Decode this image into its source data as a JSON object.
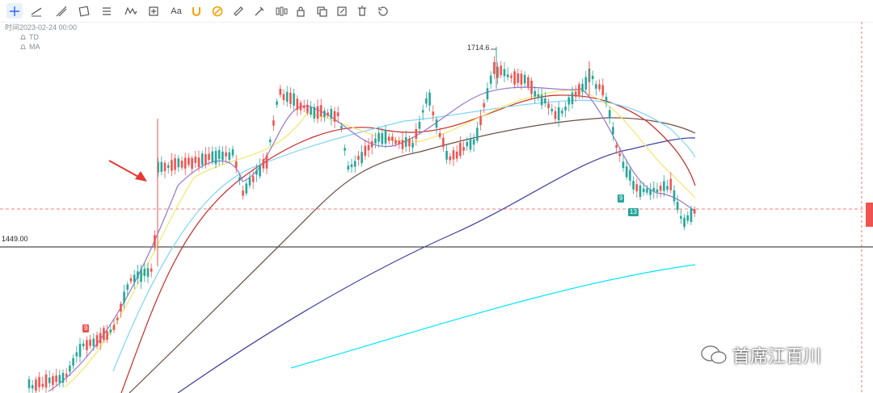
{
  "toolbar": {
    "tools": [
      {
        "icon": "crosshair-icon"
      },
      {
        "icon": "trend-line-icon"
      },
      {
        "icon": "ray-icon"
      },
      {
        "icon": "parallel-channel-icon"
      },
      {
        "icon": "rectangle-icon"
      },
      {
        "icon": "fibonacci-icon"
      },
      {
        "icon": "wave-pattern-icon"
      },
      {
        "icon": "measure-icon"
      },
      {
        "icon": "text-icon"
      },
      {
        "icon": "magnet-icon"
      },
      {
        "icon": "magnet-strong-icon"
      },
      {
        "icon": "ruler-icon"
      },
      {
        "icon": "brush-icon"
      },
      {
        "icon": "candles-icon"
      },
      {
        "icon": "lock-icon"
      },
      {
        "icon": "copy-icon"
      },
      {
        "icon": "edit-icon"
      },
      {
        "icon": "trash-icon"
      },
      {
        "icon": "history-icon"
      }
    ],
    "text_tool_label": "Aa"
  },
  "info": {
    "time_label": "时间2023-02-24 00:00",
    "indicator_1": "TD",
    "indicator_2": "MA"
  },
  "price_labels": {
    "horizontal_line": "1449.00",
    "peak": "1714.6"
  },
  "td_badges": [
    "9",
    "9",
    "13"
  ],
  "watermark": "首席江百川",
  "colors": {
    "up": "#26a69a",
    "down": "#ef5350",
    "ma5": "#9575cd",
    "ma10": "#f5e66b",
    "ma20": "#c62828",
    "ma30": "#81d4fa",
    "ma60": "#6d4c41",
    "ma120": "#3f3f9e",
    "ma250": "#00e5ff",
    "arrow": "#e53935"
  },
  "chart_data": {
    "type": "candlestick",
    "y_marked_level": 1449.0,
    "peak_high": 1714.6,
    "last_close_approx": 1490,
    "series": [
      {
        "name": "TD"
      },
      {
        "name": "MA"
      }
    ]
  }
}
